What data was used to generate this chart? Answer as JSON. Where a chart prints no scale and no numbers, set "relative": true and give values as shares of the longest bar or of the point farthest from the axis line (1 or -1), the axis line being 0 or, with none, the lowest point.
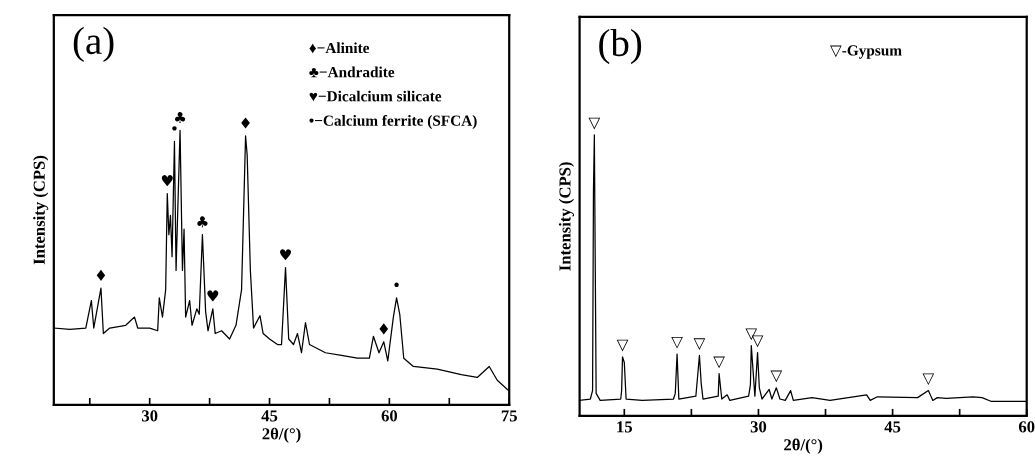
{
  "chart_data": [
    {
      "type": "line",
      "relative": true,
      "xlabel": "2θ/(°)",
      "ylabel": "Intensity (CPS)",
      "xlim": [
        18,
        75
      ],
      "xticks": [
        {
          "value": 22.5,
          "label": null
        },
        30,
        {
          "value": 37.5,
          "label": null
        },
        45,
        {
          "value": 52.5,
          "label": null
        },
        60,
        {
          "value": 67.5,
          "label": null
        },
        75
      ],
      "tick_labels": "x",
      "grid": false,
      "series": [
        {
          "color": "#000000",
          "x": [
            18,
            20,
            22,
            22.7,
            23.0,
            23.9,
            24.2,
            25,
            27,
            28.1,
            28.5,
            30,
            31,
            31.2,
            31.6,
            32.0,
            32.2,
            32.4,
            32.6,
            32.8,
            33.1,
            33.3,
            33.8,
            34.1,
            34.3,
            34.5,
            35.0,
            35.3,
            35.9,
            36.2,
            36.6,
            37.0,
            37.3,
            37.9,
            38.2,
            39,
            40,
            40.8,
            41.5,
            42.0,
            42.2,
            42.6,
            43,
            43.8,
            44.2,
            45,
            46,
            46.5,
            47.0,
            47.4,
            48,
            48.5,
            49,
            49.5,
            50,
            52,
            54,
            56,
            57.5,
            58.0,
            58.7,
            59.3,
            59.8,
            60.5,
            60.9,
            61.3,
            61.8,
            63,
            66,
            69,
            71,
            72.5,
            73.5,
            75
          ],
          "values": [
            0.28,
            0.275,
            0.28,
            0.38,
            0.28,
            0.425,
            0.26,
            0.28,
            0.29,
            0.32,
            0.28,
            0.28,
            0.27,
            0.39,
            0.32,
            0.42,
            0.77,
            0.62,
            0.69,
            0.54,
            0.96,
            0.49,
            1.0,
            0.49,
            0.64,
            0.32,
            0.38,
            0.29,
            0.35,
            0.33,
            0.62,
            0.34,
            0.27,
            0.35,
            0.26,
            0.27,
            0.24,
            0.29,
            0.42,
            0.98,
            0.91,
            0.49,
            0.28,
            0.325,
            0.26,
            0.24,
            0.22,
            0.22,
            0.5,
            0.24,
            0.22,
            0.26,
            0.19,
            0.3,
            0.22,
            0.19,
            0.18,
            0.17,
            0.17,
            0.25,
            0.19,
            0.23,
            0.16,
            0.32,
            0.39,
            0.33,
            0.17,
            0.14,
            0.13,
            0.11,
            0.1,
            0.14,
            0.09,
            0.05
          ]
        }
      ],
      "annotations": [
        "(a)",
        "♦−Alinite",
        "♣−Andradite",
        "♥−Dicalcium silicate",
        "•−Calcium ferrite (SFCA)",
        {
          "text": "♦",
          "x": 23.9,
          "y": 0.425
        },
        {
          "text": "♥",
          "x": 32.2,
          "y": 0.77
        },
        {
          "text": "•",
          "x": 33.1,
          "y": 0.96
        },
        {
          "text": "♣",
          "x": 33.8,
          "y": 1.0
        },
        {
          "text": "♣",
          "x": 36.6,
          "y": 0.62
        },
        {
          "text": "♥",
          "x": 37.9,
          "y": 0.35
        },
        {
          "text": "♦",
          "x": 42.0,
          "y": 0.98
        },
        {
          "text": "♥",
          "x": 47.0,
          "y": 0.5
        },
        {
          "text": "♦",
          "x": 59.3,
          "y": 0.23
        },
        {
          "text": "•",
          "x": 60.9,
          "y": 0.39
        }
      ]
    },
    {
      "type": "line",
      "relative": true,
      "xlabel": "2θ/(°)",
      "ylabel": "Intensity (CPS)",
      "xlim": [
        10,
        60
      ],
      "xticks": [
        15,
        {
          "value": 22.5,
          "label": null
        },
        30,
        {
          "value": 37.5,
          "label": null
        },
        45,
        {
          "value": 52.5,
          "label": null
        },
        60
      ],
      "tick_labels": "x",
      "grid": false,
      "series": [
        {
          "color": "#000000",
          "x": [
            10,
            11.2,
            11.45,
            11.55,
            11.65,
            11.85,
            12.3,
            14.6,
            14.7,
            14.8,
            15.0,
            15.2,
            17,
            20.5,
            20.7,
            20.9,
            21.1,
            23.0,
            23.4,
            23.6,
            23.8,
            25.5,
            25.6,
            25.9,
            26.5,
            26.8,
            28.9,
            29.1,
            29.2,
            29.4,
            29.6,
            29.9,
            30.1,
            30.4,
            31.2,
            31.5,
            32.0,
            32.4,
            33.0,
            33.6,
            33.9,
            36,
            38,
            42.1,
            42.5,
            43.3,
            47.8,
            49.0,
            49.5,
            50,
            51,
            54.0,
            55.0,
            56,
            60
          ],
          "values": [
            0.055,
            0.06,
            0.09,
            0.8,
            1.0,
            0.08,
            0.055,
            0.06,
            0.09,
            0.21,
            0.19,
            0.06,
            0.055,
            0.06,
            0.08,
            0.22,
            0.06,
            0.07,
            0.215,
            0.115,
            0.06,
            0.07,
            0.15,
            0.06,
            0.075,
            0.055,
            0.07,
            0.11,
            0.25,
            0.16,
            0.07,
            0.225,
            0.1,
            0.06,
            0.094,
            0.06,
            0.1,
            0.06,
            0.055,
            0.09,
            0.055,
            0.065,
            0.055,
            0.075,
            0.055,
            0.068,
            0.065,
            0.09,
            0.055,
            0.065,
            0.062,
            0.068,
            0.065,
            0.052,
            0.052
          ]
        }
      ],
      "annotations": [
        "(b)",
        "▽-Gypsum",
        {
          "text": "▽",
          "x": 11.65,
          "y": 1.0
        },
        {
          "text": "▽",
          "x": 14.8,
          "y": 0.21
        },
        {
          "text": "▽",
          "x": 20.9,
          "y": 0.22
        },
        {
          "text": "▽",
          "x": 23.4,
          "y": 0.215
        },
        {
          "text": "▽",
          "x": 25.6,
          "y": 0.15
        },
        {
          "text": "▽",
          "x": 29.2,
          "y": 0.25
        },
        {
          "text": "▽",
          "x": 29.9,
          "y": 0.225
        },
        {
          "text": "▽",
          "x": 32.0,
          "y": 0.1
        },
        {
          "text": "▽",
          "x": 49.0,
          "y": 0.09
        }
      ]
    }
  ]
}
